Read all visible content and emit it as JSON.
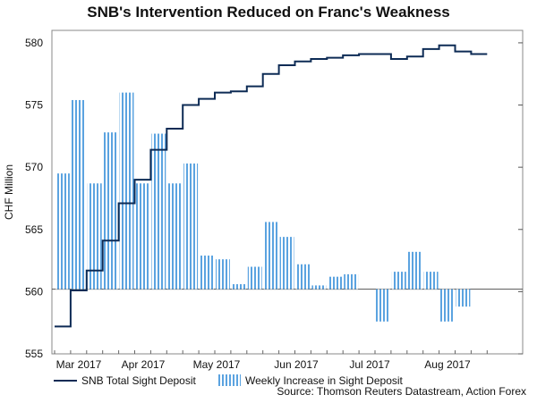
{
  "chart_data": {
    "type": "line+bar",
    "title": "SNB's Intervention Reduced on Franc's Weakness",
    "ylabel": "CHF Million",
    "ylim": [
      555,
      581
    ],
    "yticks": [
      "555",
      "560",
      "565",
      "570",
      "575",
      "580"
    ],
    "baseline": 560.2,
    "x_tick_labels": [
      "Mar 2017",
      "Apr 2017",
      "May 2017",
      "Jun 2017",
      "Jul 2017",
      "Aug 2017"
    ],
    "weeks": 27,
    "series": [
      {
        "name": "SNB Total Sight Deposit",
        "kind": "step-line",
        "color": "#0d2b55",
        "values": [
          557.2,
          560.1,
          561.7,
          564.1,
          567.1,
          569.0,
          571.4,
          573.1,
          575.0,
          575.5,
          576.0,
          576.1,
          576.5,
          577.5,
          578.2,
          578.5,
          578.7,
          578.8,
          579.0,
          579.1,
          579.1,
          578.7,
          578.9,
          579.5,
          579.8,
          579.3,
          579.1
        ]
      },
      {
        "name": "Weekly Increase in Sight Deposit",
        "kind": "bar",
        "color": "#5ba3e0",
        "values": [
          569.5,
          575.4,
          568.7,
          572.8,
          576.0,
          568.7,
          572.7,
          568.7,
          570.3,
          562.9,
          562.6,
          560.6,
          562.0,
          565.6,
          564.4,
          562.2,
          560.5,
          561.2,
          561.4,
          560.2,
          557.6,
          561.6,
          563.2,
          561.6,
          557.6,
          558.8,
          560.2
        ]
      }
    ]
  },
  "source": "Source: Thomson Reuters Datastream, Action Forex"
}
